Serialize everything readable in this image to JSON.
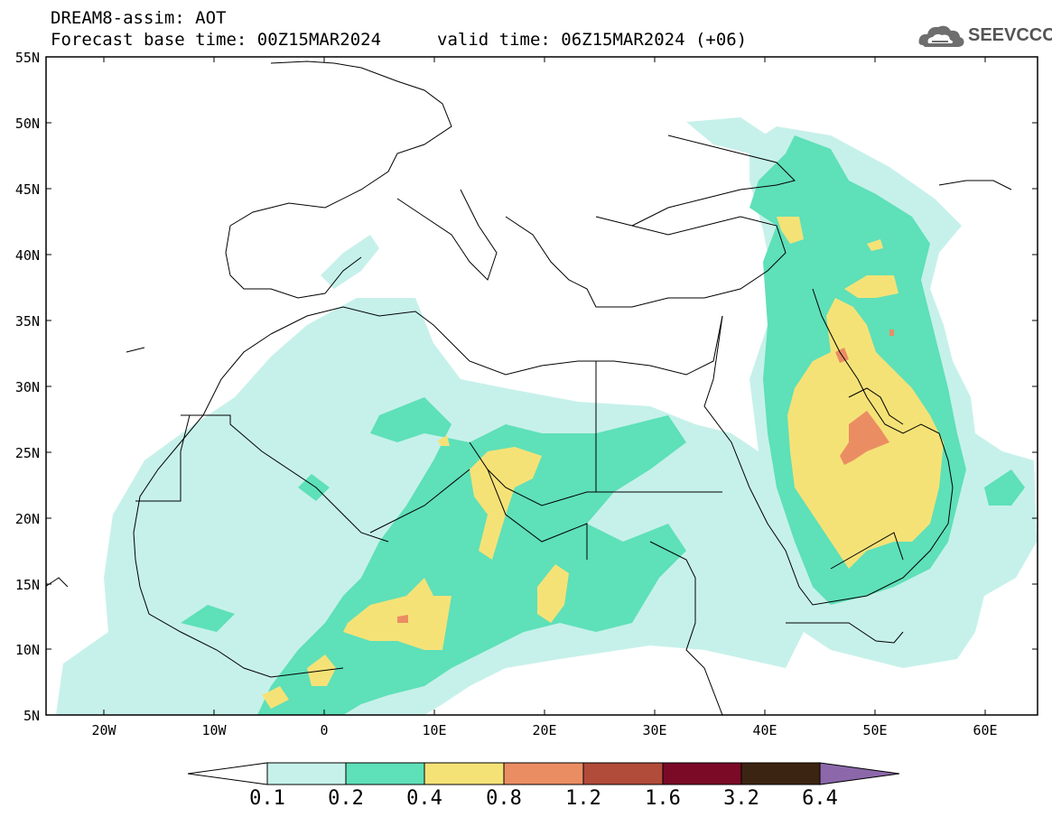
{
  "header": {
    "title": "DREAM8-assim: AOT",
    "base_time": "Forecast base time: 00Z15MAR2024",
    "valid_time": "valid time: 06Z15MAR2024 (+06)",
    "logo_text": "SEEVCCC",
    "logo_icon": "cloud-logo-icon"
  },
  "map": {
    "lat_labels": [
      "55N",
      "50N",
      "45N",
      "40N",
      "35N",
      "30N",
      "25N",
      "20N",
      "15N",
      "10N",
      "5N"
    ],
    "lon_labels": [
      "20W",
      "10W",
      "0",
      "10E",
      "20E",
      "30E",
      "40E",
      "50E",
      "60E"
    ],
    "extent": {
      "lon_min": -25,
      "lon_max": 65,
      "lat_min": 5,
      "lat_max": 55
    },
    "grid": false
  },
  "colorbar": {
    "labels": [
      "0.1",
      "0.2",
      "0.4",
      "0.8",
      "1.2",
      "1.6",
      "3.2",
      "6.4"
    ],
    "colors": [
      "#ffffff",
      "#c6f1ea",
      "#5ee0b8",
      "#f5e277",
      "#eb8d63",
      "#b14b3a",
      "#7a0a26",
      "#3c2412",
      "#8c68aa"
    ]
  }
}
